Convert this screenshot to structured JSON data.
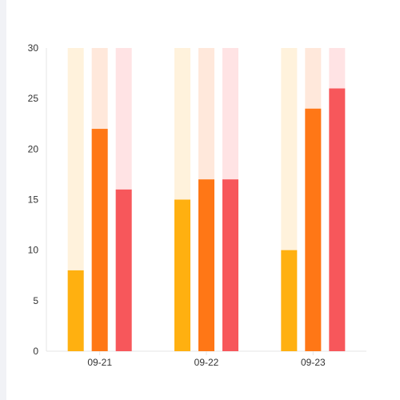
{
  "chart_data": {
    "type": "bar",
    "categories": [
      "09-21",
      "09-22",
      "09-23"
    ],
    "ylim": [
      0,
      30
    ],
    "yticks": [
      0,
      5,
      10,
      15,
      20,
      25,
      30
    ],
    "grid": false,
    "legend": "none",
    "series": [
      {
        "values": [
          8,
          15,
          10
        ],
        "color": "#ffb010",
        "track_color": "#fff2dc"
      },
      {
        "values": [
          22,
          17,
          24
        ],
        "color": "#ff7716",
        "track_color": "#ffe8db"
      },
      {
        "values": [
          16,
          17,
          26
        ],
        "color": "#f7575b",
        "track_color": "#ffe3e4"
      }
    ]
  }
}
